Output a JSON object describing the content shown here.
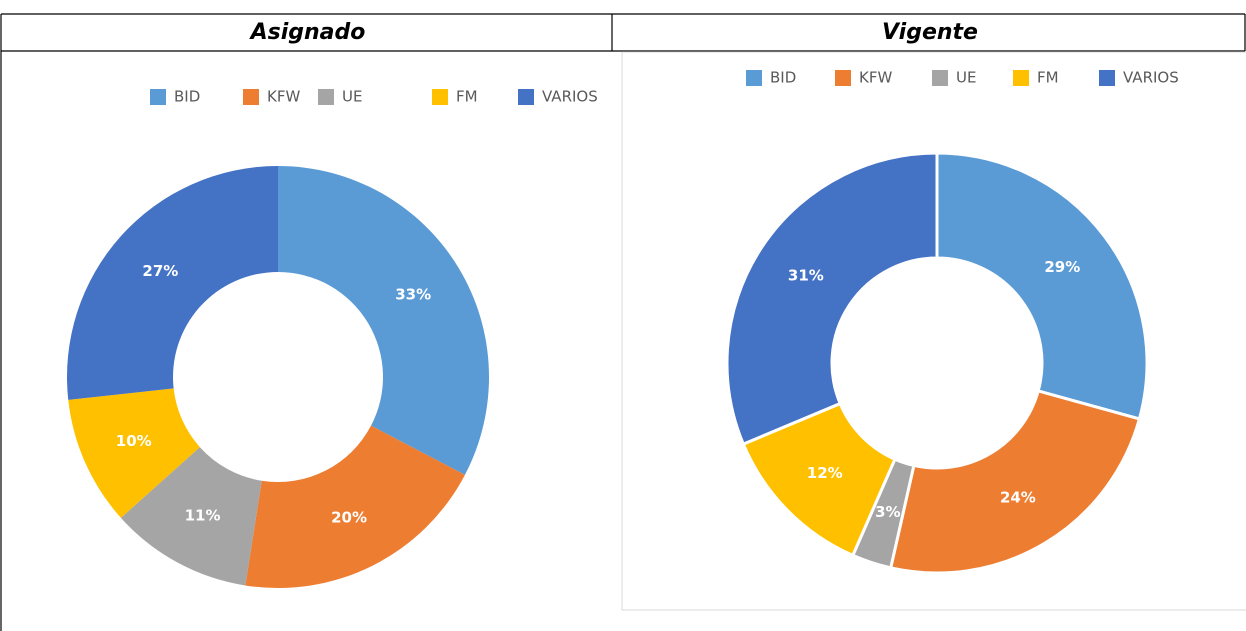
{
  "chart_data": [
    {
      "type": "donut",
      "title": "Asignado",
      "categories": [
        "BID",
        "KFW",
        "UE",
        "FM",
        "VARIOS"
      ],
      "colors": [
        "#5b9bd5",
        "#ed7d31",
        "#a5a5a5",
        "#ffc000",
        "#4472c4"
      ],
      "values": [
        33,
        20,
        11,
        10,
        27
      ],
      "value_labels": [
        "33%",
        "20%",
        "11%",
        "10%",
        "27%"
      ],
      "legend": "top"
    },
    {
      "type": "donut",
      "title": "Vigente",
      "categories": [
        "BID",
        "KFW",
        "UE",
        "FM",
        "VARIOS"
      ],
      "colors": [
        "#5b9bd5",
        "#ed7d31",
        "#a5a5a5",
        "#ffc000",
        "#4472c4"
      ],
      "values": [
        29,
        24,
        3,
        12,
        31
      ],
      "value_labels": [
        "29%",
        "24%",
        "3%",
        "12%",
        "31%"
      ],
      "legend": "top"
    }
  ]
}
